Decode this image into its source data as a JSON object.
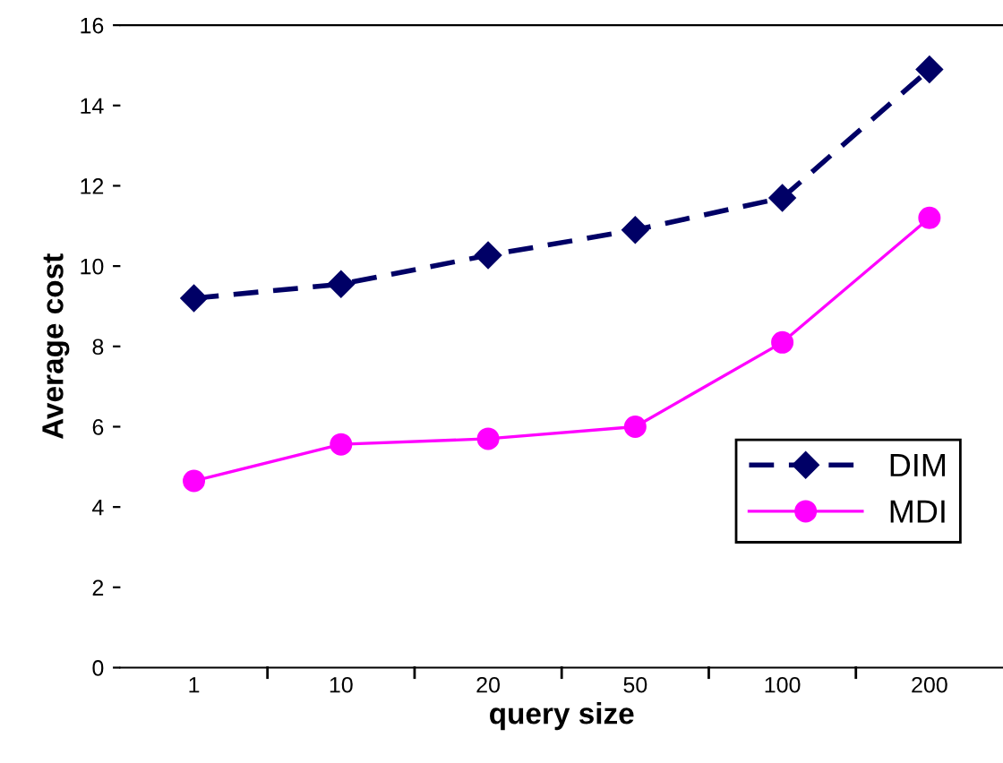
{
  "chart_data": {
    "type": "line",
    "xlabel": "query size",
    "ylabel": "Average cost",
    "categories": [
      "1",
      "10",
      "20",
      "50",
      "100",
      "200"
    ],
    "series": [
      {
        "name": "DIM",
        "color": "#000066",
        "values": [
          9.2,
          9.55,
          10.27,
          10.9,
          11.7,
          14.9
        ],
        "marker": "diamond",
        "line_style": "dashed"
      },
      {
        "name": "MDI",
        "color": "#ff00ff",
        "values": [
          4.65,
          5.56,
          5.7,
          6.0,
          8.1,
          11.2
        ],
        "marker": "circle",
        "line_style": "solid"
      }
    ],
    "ylim": [
      0,
      16
    ],
    "yticks": [
      0,
      2,
      4,
      6,
      8,
      10,
      12,
      14,
      16
    ],
    "grid": false,
    "legend": "bottom right"
  }
}
